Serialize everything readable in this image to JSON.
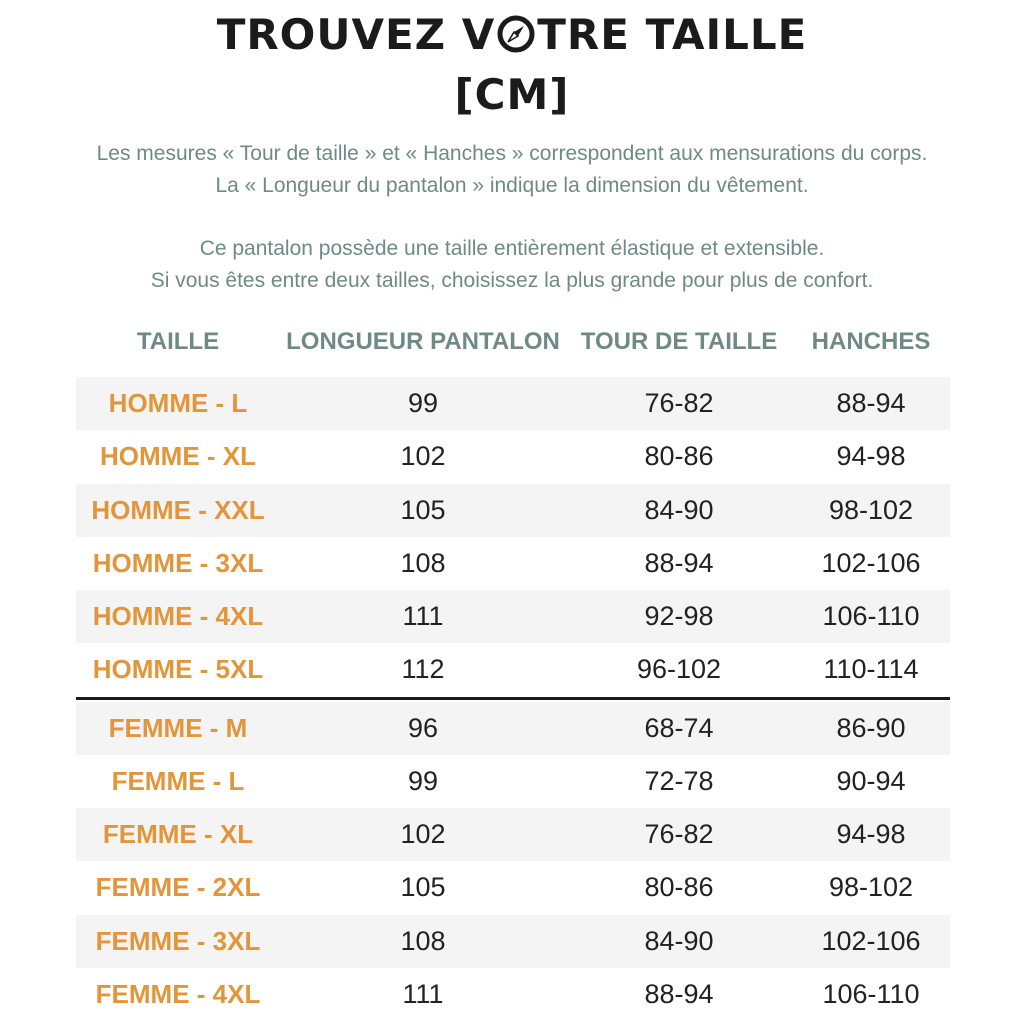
{
  "title": {
    "line1_before": "TROUVEZ V",
    "line1_after": "TRE TAILLE",
    "line2": "[CM]",
    "icon": "compass-icon"
  },
  "intro": {
    "line1": "Les mesures « Tour de taille » et « Hanches » correspondent aux mensurations du corps.",
    "line2": "La « Longueur du pantalon » indique la dimension du vêtement.",
    "line3": "Ce pantalon possède une taille entièrement élastique et extensible.",
    "line4": "Si vous êtes entre deux tailles, choisissez la plus grande pour plus de confort."
  },
  "table": {
    "headers": [
      "TAILLE",
      "LONGUEUR PANTALON",
      "TOUR DE TAILLE",
      "HANCHES"
    ],
    "rows": [
      [
        "HOMME - L",
        "99",
        "76-82",
        "88-94"
      ],
      [
        "HOMME - XL",
        "102",
        "80-86",
        "94-98"
      ],
      [
        "HOMME - XXL",
        "105",
        "84-90",
        "98-102"
      ],
      [
        "HOMME - 3XL",
        "108",
        "88-94",
        "102-106"
      ],
      [
        "HOMME - 4XL",
        "111",
        "92-98",
        "106-110"
      ],
      [
        "HOMME - 5XL",
        "112",
        "96-102",
        "110-114"
      ],
      [
        "FEMME - M",
        "96",
        "68-74",
        "86-90"
      ],
      [
        "FEMME - L",
        "99",
        "72-78",
        "90-94"
      ],
      [
        "FEMME - XL",
        "102",
        "76-82",
        "94-98"
      ],
      [
        "FEMME - 2XL",
        "105",
        "80-86",
        "98-102"
      ],
      [
        "FEMME - 3XL",
        "108",
        "84-90",
        "102-106"
      ],
      [
        "FEMME - 4XL",
        "111",
        "88-94",
        "106-110"
      ]
    ]
  },
  "colors": {
    "title": "#1b1b1b",
    "text_muted": "#6f8a84",
    "size_label": "#e2953a",
    "row_shade": "#f4f4f4"
  }
}
